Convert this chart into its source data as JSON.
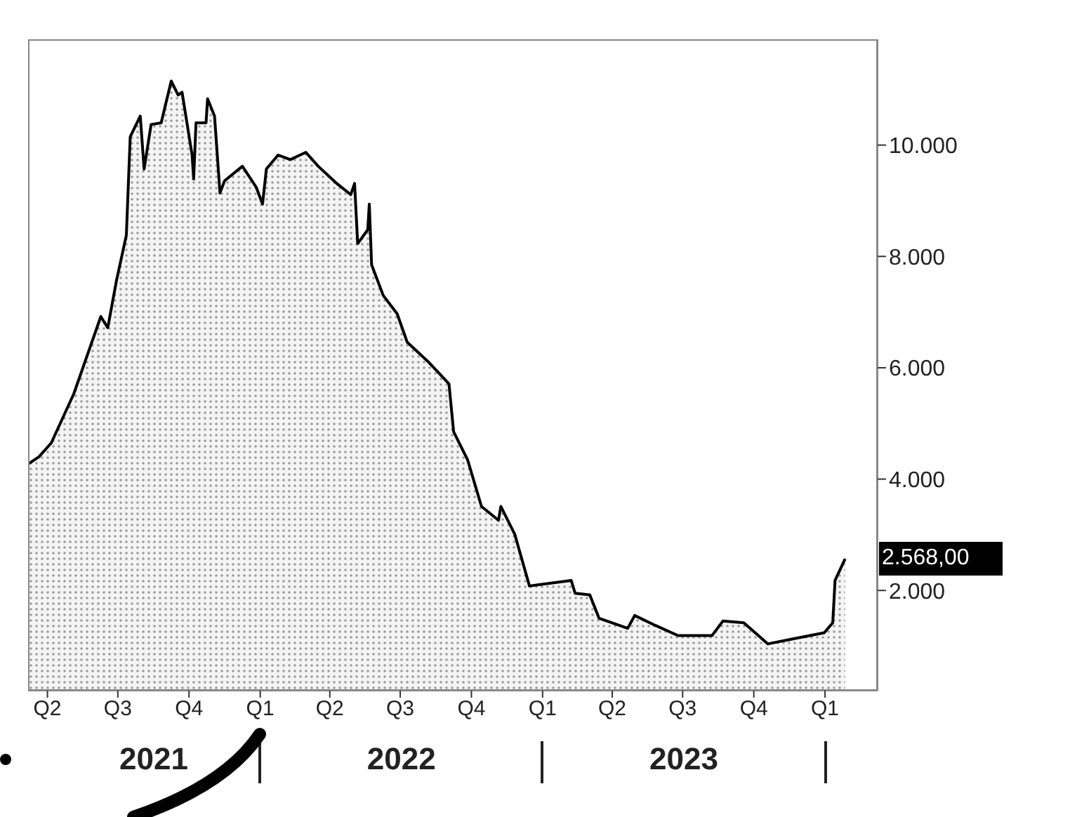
{
  "chart_data": {
    "type": "area",
    "x": [
      "2021-03-07",
      "2021-03-21",
      "2021-04-06",
      "2021-05-05",
      "2021-06-09",
      "2021-06-18",
      "2021-06-29",
      "2021-07-12",
      "2021-07-17",
      "2021-07-30",
      "2021-08-04",
      "2021-08-13",
      "2021-08-26",
      "2021-09-08",
      "2021-09-17",
      "2021-09-22",
      "2021-10-05",
      "2021-10-07",
      "2021-10-10",
      "2021-10-23",
      "2021-10-25",
      "2021-11-03",
      "2021-11-10",
      "2021-11-16",
      "2021-12-09",
      "2021-12-27",
      "2022-01-04",
      "2022-01-09",
      "2022-01-24",
      "2022-02-09",
      "2022-03-01",
      "2022-03-17",
      "2022-04-10",
      "2022-04-28",
      "2022-05-03",
      "2022-05-07",
      "2022-05-20",
      "2022-05-22",
      "2022-05-25",
      "2022-06-09",
      "2022-06-27",
      "2022-07-10",
      "2022-08-06",
      "2022-09-02",
      "2022-09-08",
      "2022-09-26",
      "2022-10-14",
      "2022-11-05",
      "2022-11-08",
      "2022-11-26",
      "2022-12-15",
      "2023-02-07",
      "2023-02-12",
      "2023-03-03",
      "2023-03-15",
      "2023-04-21",
      "2023-04-30",
      "2023-05-27",
      "2023-06-25",
      "2023-08-08",
      "2023-08-22",
      "2023-09-18",
      "2023-10-19",
      "2023-11-17",
      "2023-12-31",
      "2024-01-11",
      "2024-01-14",
      "2024-01-27"
    ],
    "series": [
      {
        "color": "#000000",
        "values": [
          4270,
          4400,
          4650,
          5530,
          6920,
          6720,
          7550,
          8380,
          10150,
          10520,
          9570,
          10370,
          10400,
          11150,
          10900,
          10950,
          9820,
          9390,
          10400,
          10400,
          10830,
          10520,
          9140,
          9360,
          9620,
          9240,
          8940,
          9570,
          9820,
          9740,
          9870,
          9620,
          9310,
          9110,
          9310,
          8230,
          8480,
          8940,
          7850,
          7300,
          6970,
          6460,
          6110,
          5710,
          4850,
          4350,
          3510,
          3260,
          3510,
          3010,
          2080,
          2180,
          1950,
          1920,
          1500,
          1320,
          1550,
          1370,
          1190,
          1190,
          1450,
          1420,
          1040,
          1120,
          1240,
          1420,
          2180,
          2568
        ]
      }
    ],
    "xlim": [
      "2021-03-07",
      "2024-03-09"
    ],
    "xticks": [
      {
        "value": "2021-04-01",
        "label": "Q2"
      },
      {
        "value": "2021-07-01",
        "label": "Q3"
      },
      {
        "value": "2021-10-01",
        "label": "Q4"
      },
      {
        "value": "2022-01-01",
        "label": "Q1"
      },
      {
        "value": "2022-04-01",
        "label": "Q2"
      },
      {
        "value": "2022-07-01",
        "label": "Q3"
      },
      {
        "value": "2022-10-01",
        "label": "Q4"
      },
      {
        "value": "2023-01-01",
        "label": "Q1"
      },
      {
        "value": "2023-04-01",
        "label": "Q2"
      },
      {
        "value": "2023-07-01",
        "label": "Q3"
      },
      {
        "value": "2023-10-01",
        "label": "Q4"
      },
      {
        "value": "2024-01-01",
        "label": "Q1"
      }
    ],
    "ylim": [
      200,
      11900
    ],
    "yticks": [
      {
        "value": 2000,
        "label": "2.000"
      },
      {
        "value": 4000,
        "label": "4.000"
      },
      {
        "value": 6000,
        "label": "6.000"
      },
      {
        "value": 8000,
        "label": "8.000"
      },
      {
        "value": 10000,
        "label": "10.000"
      }
    ],
    "annotations": [
      "2021",
      "2022",
      "2023",
      "2.568,00"
    ],
    "grid": false
  }
}
